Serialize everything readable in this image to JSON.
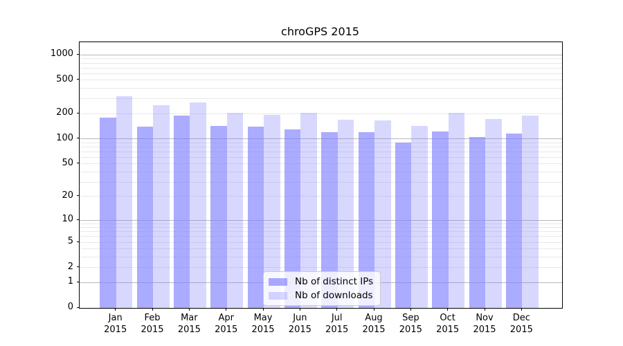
{
  "chart_data": {
    "type": "bar",
    "title": "chroGPS 2015",
    "x": {
      "months": [
        "Jan",
        "Feb",
        "Mar",
        "Apr",
        "May",
        "Jun",
        "Jul",
        "Aug",
        "Sep",
        "Oct",
        "Nov",
        "Dec"
      ],
      "year": "2015"
    },
    "series": [
      {
        "name": "Nb of distinct IPs",
        "values": [
          180,
          140,
          190,
          143,
          140,
          130,
          120,
          120,
          90,
          122,
          106,
          115
        ]
      },
      {
        "name": "Nb of downloads",
        "values": [
          320,
          250,
          270,
          205,
          195,
          205,
          169,
          165,
          143,
          203,
          172,
          190
        ]
      }
    ],
    "y_scale": "log1p",
    "y_ticks": [
      0,
      1,
      2,
      5,
      10,
      20,
      50,
      100,
      200,
      500,
      1000
    ],
    "ylim": [
      0,
      1412
    ],
    "grid": true,
    "legend_position": "lower center",
    "legend_entries": [
      "Nb of distinct IPs",
      "Nb of downloads"
    ],
    "colors": {
      "bar_base": "#7f7fff",
      "ips_fill": "rgba(127,127,255,0.66)",
      "downloads_fill": "rgba(127,127,255,0.30)",
      "grid_major": "#b8b8b8",
      "grid_minor": "#e8e8e8",
      "axis": "#000000",
      "legend_border": "#cccccc",
      "title_color": "#000000"
    }
  }
}
